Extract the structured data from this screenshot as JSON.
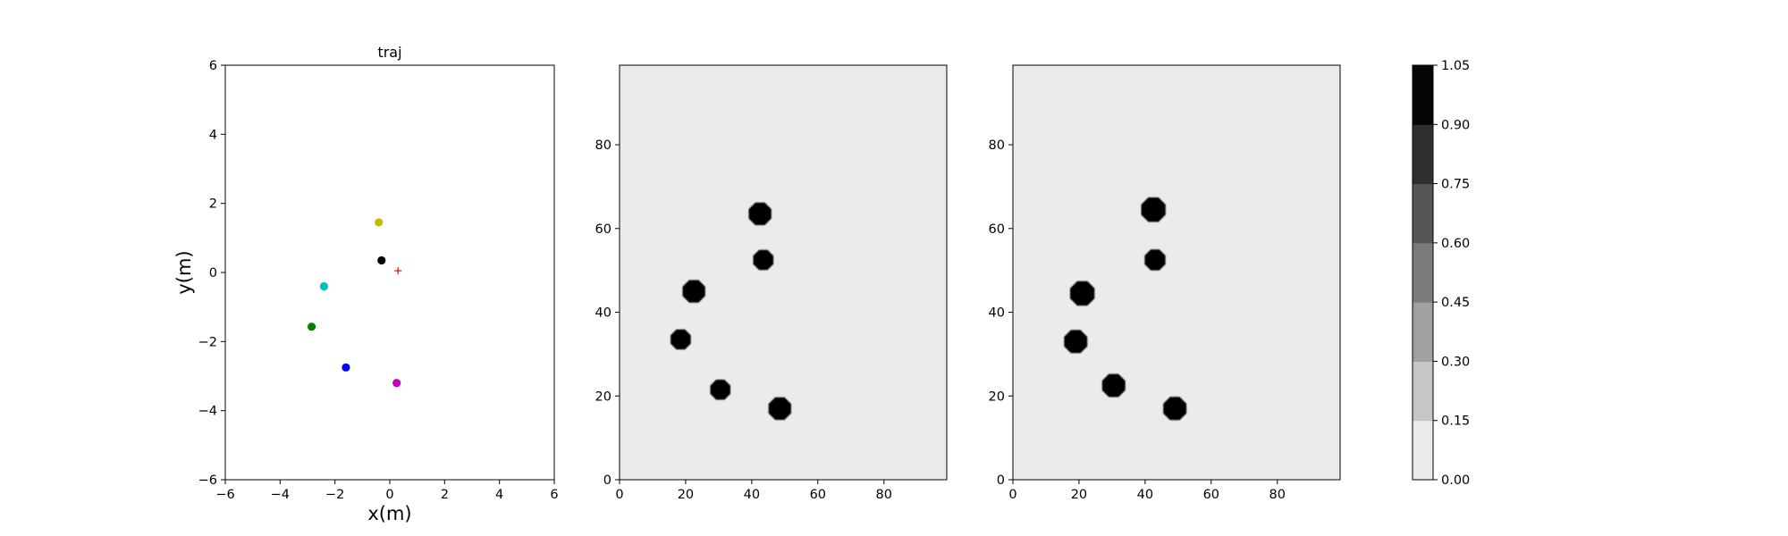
{
  "chart_data": [
    {
      "type": "scatter",
      "title": "traj",
      "xlabel": "x(m)",
      "ylabel": "y(m)",
      "xlim": [
        -6,
        6
      ],
      "ylim": [
        -6,
        6
      ],
      "xticks": [
        "−6",
        "−4",
        "−2",
        "0",
        "2",
        "4",
        "6"
      ],
      "yticks": [
        "−6",
        "−4",
        "−2",
        "0",
        "2",
        "4",
        "6"
      ],
      "grid": false,
      "points": [
        {
          "x": -0.4,
          "y": 1.45,
          "color": "#bfbf00",
          "marker": "dot"
        },
        {
          "x": -0.3,
          "y": 0.35,
          "color": "#000000",
          "marker": "dot"
        },
        {
          "x": -2.4,
          "y": -0.4,
          "color": "#00bfbf",
          "marker": "dot"
        },
        {
          "x": -2.85,
          "y": -1.57,
          "color": "#008000",
          "marker": "dot"
        },
        {
          "x": -1.6,
          "y": -2.75,
          "color": "#0000ff",
          "marker": "dot"
        },
        {
          "x": 0.25,
          "y": -3.2,
          "color": "#bf00bf",
          "marker": "dot"
        },
        {
          "x": 0.3,
          "y": 0.05,
          "color": "#ff0000",
          "marker": "plus"
        }
      ]
    },
    {
      "type": "heatmap",
      "xlim": [
        0,
        99
      ],
      "ylim": [
        0,
        99
      ],
      "xticks": [
        "0",
        "20",
        "40",
        "60",
        "80"
      ],
      "yticks": [
        "0",
        "20",
        "40",
        "60",
        "80"
      ],
      "background_value": 0.0,
      "blobs": [
        {
          "x": 42.5,
          "y": 63.5,
          "r": 3.7
        },
        {
          "x": 43.5,
          "y": 52.5,
          "r": 3.3
        },
        {
          "x": 22.5,
          "y": 45.0,
          "r": 3.7
        },
        {
          "x": 18.5,
          "y": 33.5,
          "r": 3.3
        },
        {
          "x": 30.5,
          "y": 21.5,
          "r": 3.3
        },
        {
          "x": 48.5,
          "y": 17.0,
          "r": 3.7
        }
      ]
    },
    {
      "type": "heatmap",
      "xlim": [
        0,
        99
      ],
      "ylim": [
        0,
        99
      ],
      "xticks": [
        "0",
        "20",
        "40",
        "60",
        "80"
      ],
      "yticks": [
        "0",
        "20",
        "40",
        "60",
        "80"
      ],
      "background_value": 0.0,
      "blobs": [
        {
          "x": 42.5,
          "y": 64.5,
          "r": 4.0
        },
        {
          "x": 43.0,
          "y": 52.5,
          "r": 3.4
        },
        {
          "x": 21.0,
          "y": 44.5,
          "r": 4.0
        },
        {
          "x": 19.0,
          "y": 33.0,
          "r": 3.8
        },
        {
          "x": 30.5,
          "y": 22.5,
          "r": 3.8
        },
        {
          "x": 49.0,
          "y": 17.0,
          "r": 3.8
        }
      ]
    }
  ],
  "colorbar": {
    "levels": [
      0.0,
      0.15,
      0.3,
      0.45,
      0.6,
      0.75,
      0.9,
      1.05
    ],
    "tick_labels": [
      "0.00",
      "0.15",
      "0.30",
      "0.45",
      "0.60",
      "0.75",
      "0.90",
      "1.05"
    ],
    "colors": [
      "#ebebeb",
      "#c6c6c6",
      "#a0a0a0",
      "#7c7c7c",
      "#565656",
      "#2f2f2f",
      "#050505"
    ]
  }
}
